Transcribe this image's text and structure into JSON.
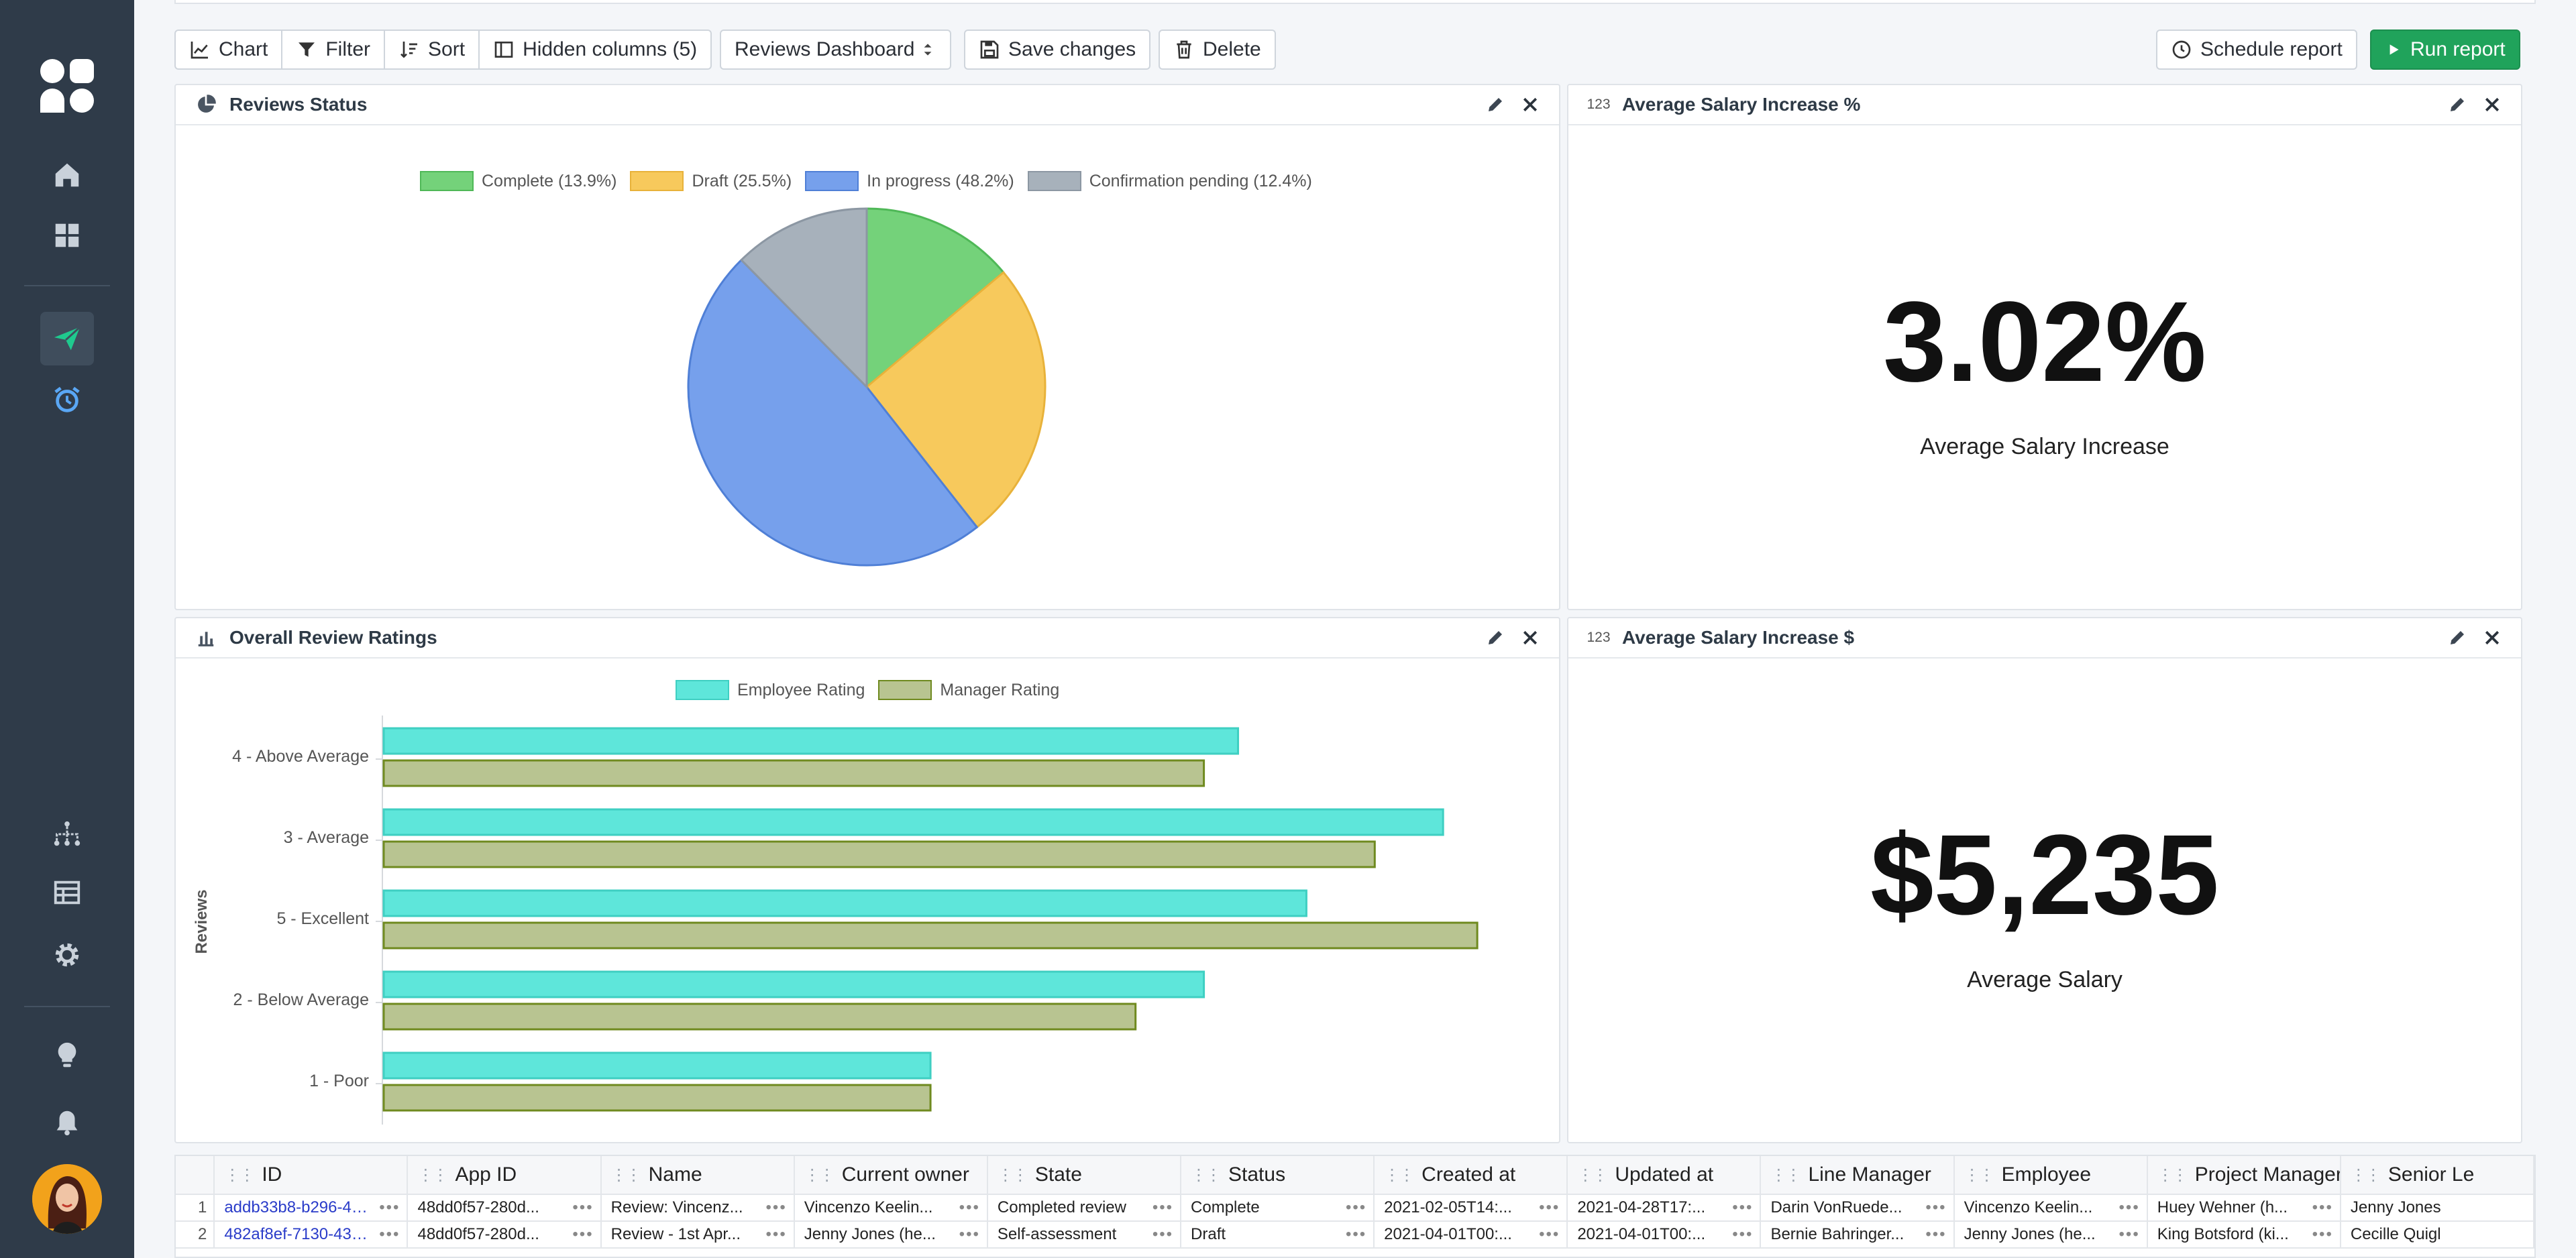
{
  "toolbar": {
    "chart": "Chart",
    "filter": "Filter",
    "sort": "Sort",
    "hidden_columns": "Hidden columns (5)",
    "dashboard_select": "Reviews Dashboard",
    "save": "Save changes",
    "delete": "Delete",
    "schedule": "Schedule report",
    "run": "Run report"
  },
  "panels": {
    "reviews_status": {
      "title": "Reviews Status",
      "legend": [
        {
          "label": "Complete (13.9%)",
          "color": "#74d27a",
          "border": "#4fb857"
        },
        {
          "label": "Draft (25.5%)",
          "color": "#f7c95c",
          "border": "#e8b23a"
        },
        {
          "label": "In progress (48.2%)",
          "color": "#76a0ec",
          "border": "#4f7fd6"
        },
        {
          "label": "Confirmation pending (12.4%)",
          "color": "#a7b1bb",
          "border": "#8c97a3"
        }
      ]
    },
    "avg_salary_pct": {
      "title": "Average Salary Increase %",
      "value": "3.02%",
      "label": "Average Salary Increase"
    },
    "overall_ratings": {
      "title": "Overall Review Ratings",
      "legend": [
        {
          "label": "Employee Rating",
          "color": "#5ee6da",
          "border": "#3fcfc2"
        },
        {
          "label": "Manager Rating",
          "color": "#b8c491",
          "border": "#6f8a1f"
        }
      ]
    },
    "avg_salary_usd": {
      "title": "Average Salary Increase $",
      "value": "$5,235",
      "label": "Average Salary"
    }
  },
  "chart_data": [
    {
      "type": "pie",
      "categories": [
        "Complete",
        "Draft",
        "In progress",
        "Confirmation pending"
      ],
      "values": [
        13.9,
        25.5,
        48.2,
        12.4
      ],
      "colors": [
        "#74d27a",
        "#f7c95c",
        "#76a0ec",
        "#a7b1bb"
      ],
      "borders": [
        "#4fb857",
        "#e8b23a",
        "#4f7fd6",
        "#8c97a3"
      ],
      "legend": "top"
    },
    {
      "type": "bar",
      "orientation": "horizontal",
      "categories": [
        "4 - Above Average",
        "3 - Average",
        "5 - Excellent",
        "2 - Below Average",
        "1 - Poor"
      ],
      "ylabel": "Reviews",
      "xlim": [
        0,
        17
      ],
      "series": [
        {
          "name": "Employee Rating",
          "values": [
            12.5,
            15.5,
            13.5,
            12,
            8
          ],
          "color": "#5ee6da",
          "border": "#3fcfc2"
        },
        {
          "name": "Manager Rating",
          "values": [
            12,
            14.5,
            16,
            11,
            8
          ],
          "color": "#b8c491",
          "border": "#6f8a1f"
        }
      ],
      "legend": "top"
    }
  ],
  "table": {
    "columns": [
      "ID",
      "App ID",
      "Name",
      "Current owner",
      "State",
      "Status",
      "Created at",
      "Updated at",
      "Line Manager",
      "Employee",
      "Project Manager",
      "Senior Le"
    ],
    "rows": [
      {
        "num": "1",
        "cells": [
          "addb33b8-b296-4e...",
          "48dd0f57-280d...",
          "Review: Vincenz...",
          "Vincenzo Keelin...",
          "Completed review",
          "Complete",
          "2021-02-05T14:...",
          "2021-04-28T17:...",
          "Darin VonRuede...",
          "Vincenzo Keelin...",
          "Huey Wehner (h...",
          "Jenny Jones"
        ]
      },
      {
        "num": "2",
        "cells": [
          "482af8ef-7130-432...",
          "48dd0f57-280d...",
          "Review - 1st Apr...",
          "Jenny Jones (he...",
          "Self-assessment",
          "Draft",
          "2021-04-01T00:...",
          "2021-04-01T00:...",
          "Bernie Bahringer...",
          "Jenny Jones (he...",
          "King Botsford (ki...",
          "Cecille Quigl"
        ]
      }
    ]
  }
}
